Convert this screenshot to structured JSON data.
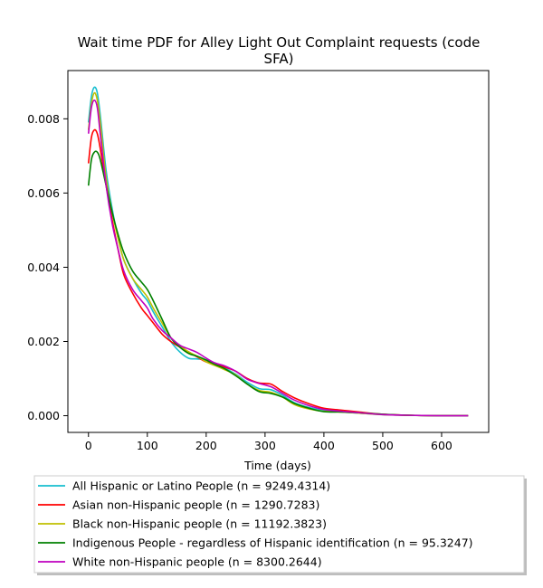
{
  "chart_data": {
    "type": "line",
    "title_line1": "Wait time PDF for Alley Light Out Complaint  requests (code",
    "title_line2": "SFA)",
    "xlabel": "Time (days)",
    "ylabel": "",
    "xlim": [
      -35,
      680
    ],
    "ylim": [
      -0.00045,
      0.0093
    ],
    "xticks": [
      0,
      100,
      200,
      300,
      400,
      500,
      600
    ],
    "xtick_labels": [
      "0",
      "100",
      "200",
      "300",
      "400",
      "500",
      "600"
    ],
    "yticks": [
      0.0,
      0.002,
      0.004,
      0.006,
      0.008
    ],
    "ytick_labels": [
      "0.000",
      "0.002",
      "0.004",
      "0.006",
      "0.008"
    ],
    "grid": false,
    "legend_placement": "below",
    "series": [
      {
        "name": "All Hispanic or Latino People (n = 9249.4314)",
        "color": "#17becf",
        "x": [
          0,
          5,
          10,
          15,
          20,
          30,
          40,
          50,
          60,
          75,
          90,
          100,
          110,
          125,
          140,
          155,
          170,
          185,
          200,
          215,
          230,
          250,
          270,
          290,
          310,
          330,
          350,
          375,
          400,
          430,
          460,
          500,
          550,
          600,
          645
        ],
        "y": [
          0.0079,
          0.0086,
          0.00885,
          0.0087,
          0.0081,
          0.0066,
          0.0056,
          0.0048,
          0.0042,
          0.0037,
          0.0033,
          0.0031,
          0.0028,
          0.0024,
          0.002,
          0.00172,
          0.00155,
          0.00153,
          0.0015,
          0.00142,
          0.0013,
          0.00112,
          0.0009,
          0.00073,
          0.0007,
          0.00055,
          0.00035,
          0.00022,
          0.00014,
          0.0001,
          7e-05,
          3e-05,
          1e-05,
          0.0,
          0.0
        ]
      },
      {
        "name": "Asian non-Hispanic people (n = 1290.7283)",
        "color": "#ff0000",
        "x": [
          0,
          5,
          10,
          15,
          20,
          30,
          40,
          50,
          60,
          75,
          90,
          100,
          110,
          125,
          140,
          155,
          170,
          185,
          200,
          215,
          230,
          250,
          270,
          290,
          310,
          330,
          350,
          375,
          400,
          430,
          460,
          500,
          550,
          600,
          645
        ],
        "y": [
          0.0068,
          0.0075,
          0.0077,
          0.0076,
          0.0072,
          0.0062,
          0.0053,
          0.0045,
          0.0038,
          0.0033,
          0.0029,
          0.0027,
          0.0025,
          0.0022,
          0.002,
          0.00185,
          0.00172,
          0.00158,
          0.00145,
          0.0014,
          0.00132,
          0.0012,
          0.001,
          0.00088,
          0.00085,
          0.00065,
          0.00048,
          0.00032,
          0.0002,
          0.00015,
          0.0001,
          4e-05,
          1e-05,
          0.0,
          0.0
        ]
      },
      {
        "name": "Black non-Hispanic people (n = 11192.3823)",
        "color": "#bfbf00",
        "x": [
          0,
          5,
          10,
          15,
          20,
          30,
          40,
          50,
          60,
          75,
          90,
          100,
          110,
          125,
          140,
          155,
          170,
          185,
          200,
          215,
          230,
          250,
          270,
          290,
          310,
          330,
          350,
          375,
          400,
          430,
          460,
          500,
          550,
          600,
          645
        ],
        "y": [
          0.0077,
          0.0084,
          0.0087,
          0.0085,
          0.0079,
          0.0064,
          0.0055,
          0.0048,
          0.0042,
          0.0037,
          0.0034,
          0.0032,
          0.0029,
          0.0025,
          0.0021,
          0.0019,
          0.00172,
          0.0016,
          0.00145,
          0.00135,
          0.00125,
          0.0011,
          0.00085,
          0.00068,
          0.00063,
          0.0005,
          0.0003,
          0.00018,
          0.00012,
          0.0001,
          7e-05,
          3e-05,
          1e-05,
          0.0,
          0.0
        ]
      },
      {
        "name": "Indigenous People - regardless of Hispanic identification (n = 95.3247)",
        "color": "#008000",
        "x": [
          0,
          5,
          10,
          15,
          20,
          30,
          40,
          50,
          60,
          75,
          90,
          100,
          110,
          125,
          140,
          155,
          170,
          185,
          200,
          215,
          230,
          250,
          270,
          290,
          310,
          330,
          350,
          375,
          400,
          430,
          460,
          500,
          550,
          600,
          645
        ],
        "y": [
          0.0062,
          0.0069,
          0.0071,
          0.0071,
          0.0069,
          0.0062,
          0.0055,
          0.0049,
          0.0044,
          0.0039,
          0.0036,
          0.0034,
          0.0031,
          0.0026,
          0.0021,
          0.00185,
          0.00168,
          0.0016,
          0.0015,
          0.00138,
          0.00128,
          0.00108,
          0.00085,
          0.00065,
          0.0006,
          0.0005,
          0.00033,
          0.0002,
          0.00011,
          0.0001,
          8e-05,
          4e-05,
          1e-05,
          0.0,
          0.0
        ]
      },
      {
        "name": "White non-Hispanic people (n = 8300.2644)",
        "color": "#bf00bf",
        "x": [
          0,
          5,
          10,
          15,
          20,
          30,
          40,
          50,
          60,
          75,
          90,
          100,
          110,
          125,
          140,
          155,
          170,
          185,
          200,
          215,
          230,
          250,
          270,
          290,
          310,
          330,
          350,
          375,
          400,
          430,
          460,
          500,
          550,
          600,
          645
        ],
        "y": [
          0.0076,
          0.0083,
          0.0085,
          0.0083,
          0.0076,
          0.0062,
          0.0052,
          0.0045,
          0.0039,
          0.0034,
          0.0031,
          0.0029,
          0.0026,
          0.0023,
          0.0021,
          0.0019,
          0.0018,
          0.0017,
          0.00155,
          0.00142,
          0.00135,
          0.0012,
          0.00098,
          0.00087,
          0.00078,
          0.0006,
          0.00042,
          0.00027,
          0.00017,
          0.00012,
          8e-05,
          3e-05,
          1e-05,
          0.0,
          0.0
        ]
      }
    ]
  }
}
